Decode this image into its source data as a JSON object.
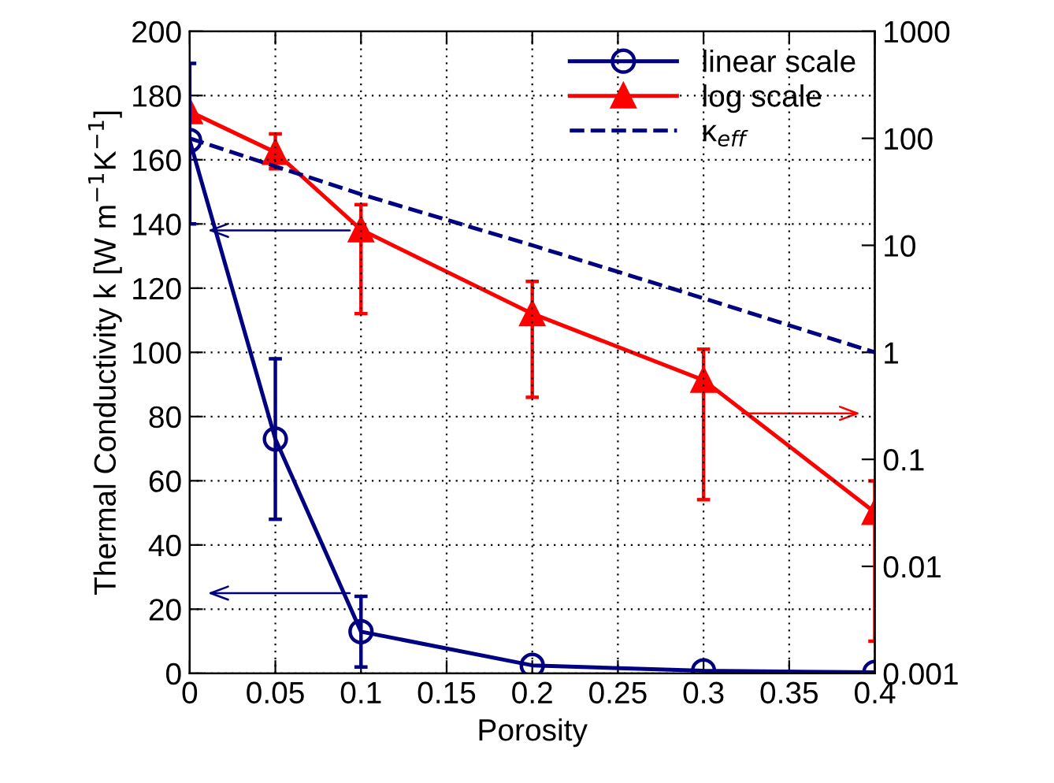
{
  "chart_data": {
    "type": "line",
    "xlabel": "Porosity",
    "ylabel": "Thermal Conductivity k [W m$^{−1}$K$^{−1}$]",
    "x": [
      0,
      0.05,
      0.1,
      0.2,
      0.3,
      0.4
    ],
    "xlim": [
      0,
      0.4
    ],
    "xticks": [
      0,
      0.05,
      0.1,
      0.15,
      0.2,
      0.25,
      0.3,
      0.35,
      0.4
    ],
    "ylim": [
      0,
      200
    ],
    "yticks": [
      0,
      20,
      40,
      60,
      80,
      100,
      120,
      140,
      160,
      180,
      200
    ],
    "y2lim": [
      0.001,
      1000
    ],
    "y2ticks": [
      0.001,
      0.01,
      0.1,
      1,
      10,
      100,
      1000
    ],
    "log": "y2",
    "grid": true,
    "legend": "top right",
    "series": [
      {
        "name": "linear scale",
        "color": "#000080",
        "values": [
          166,
          73,
          13,
          2.5,
          0.8,
          0.3
        ],
        "errors": [
          [
            140,
            190
          ],
          [
            48,
            98
          ],
          [
            2,
            24
          ],
          null,
          null,
          null
        ],
        "marker": "circle",
        "line_style": "solid"
      },
      {
        "name": "log scale",
        "color": "#ff0000",
        "axis": "y2",
        "values": [
          178,
          74,
          14,
          2.3,
          0.55,
          0.032
        ],
        "errors": [
          null,
          [
            52,
            110
          ],
          [
            2.3,
            24
          ],
          [
            0.38,
            4.6
          ],
          [
            0.042,
            1.07
          ],
          [
            0.002,
            0.063
          ]
        ],
        "marker": "triangle",
        "line_style": "solid"
      },
      {
        "name": "κ$_{eff}$",
        "color": "#000080",
        "axis": "y2",
        "values": [
          100,
          30,
          10,
          3.2,
          1
        ],
        "x": [
          0,
          0.1,
          0.2,
          0.3,
          0.4
        ],
        "marker": "none",
        "line_style": "dashed"
      }
    ]
  }
}
